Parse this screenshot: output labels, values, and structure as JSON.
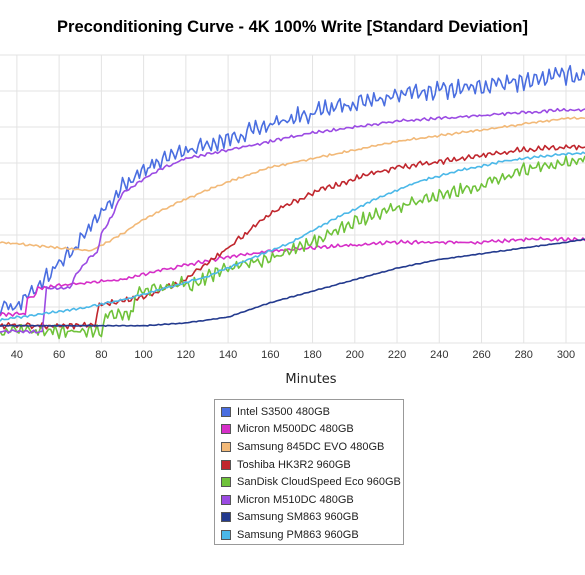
{
  "chart_data": {
    "type": "line",
    "title": "Preconditioning Curve - 4K 100% Write [Standard Deviation]",
    "xlabel": "Minutes",
    "ylabel": "",
    "x_tick_labels": [
      "40",
      "60",
      "80",
      "100",
      "120",
      "140",
      "160",
      "180",
      "200",
      "220",
      "240",
      "260",
      "280",
      "300"
    ],
    "xlim": [
      32,
      309
    ],
    "ylim": [
      0,
      1
    ],
    "y_tick_labels_visible": false,
    "grid": true,
    "legend_position": "bottom-center",
    "series": [
      {
        "name": "Intel S3500 480GB",
        "color": "#4a6ee0",
        "noise": 0.03,
        "points": [
          [
            32,
            0.13
          ],
          [
            40,
            0.13
          ],
          [
            45,
            0.16
          ],
          [
            50,
            0.2
          ],
          [
            55,
            0.24
          ],
          [
            60,
            0.28
          ],
          [
            65,
            0.31
          ],
          [
            70,
            0.35
          ],
          [
            75,
            0.4
          ],
          [
            80,
            0.45
          ],
          [
            90,
            0.54
          ],
          [
            100,
            0.6
          ],
          [
            110,
            0.64
          ],
          [
            120,
            0.67
          ],
          [
            130,
            0.69
          ],
          [
            140,
            0.71
          ],
          [
            160,
            0.76
          ],
          [
            180,
            0.8
          ],
          [
            200,
            0.83
          ],
          [
            220,
            0.86
          ],
          [
            240,
            0.88
          ],
          [
            260,
            0.89
          ],
          [
            280,
            0.91
          ],
          [
            300,
            0.93
          ],
          [
            309,
            0.93
          ]
        ]
      },
      {
        "name": "Micron M500DC 480GB",
        "color": "#d62fc8",
        "noise": 0.006,
        "points": [
          [
            32,
            0.1
          ],
          [
            44,
            0.1
          ],
          [
            45,
            0.16
          ],
          [
            48,
            0.16
          ],
          [
            50,
            0.19
          ],
          [
            60,
            0.2
          ],
          [
            75,
            0.21
          ],
          [
            90,
            0.22
          ],
          [
            100,
            0.24
          ],
          [
            120,
            0.27
          ],
          [
            140,
            0.3
          ],
          [
            160,
            0.32
          ],
          [
            180,
            0.33
          ],
          [
            200,
            0.34
          ],
          [
            220,
            0.35
          ],
          [
            240,
            0.35
          ],
          [
            260,
            0.35
          ],
          [
            280,
            0.36
          ],
          [
            300,
            0.36
          ],
          [
            309,
            0.36
          ]
        ]
      },
      {
        "name": "Samsung 845DC EVO 480GB",
        "color": "#f2b978",
        "noise": 0.004,
        "points": [
          [
            32,
            0.35
          ],
          [
            75,
            0.32
          ],
          [
            90,
            0.38
          ],
          [
            100,
            0.43
          ],
          [
            120,
            0.5
          ],
          [
            140,
            0.56
          ],
          [
            160,
            0.61
          ],
          [
            180,
            0.64
          ],
          [
            200,
            0.67
          ],
          [
            220,
            0.7
          ],
          [
            240,
            0.72
          ],
          [
            260,
            0.74
          ],
          [
            280,
            0.76
          ],
          [
            300,
            0.78
          ],
          [
            309,
            0.78
          ]
        ]
      },
      {
        "name": "Toshiba HK3R2 960GB",
        "color": "#c0262d",
        "noise": 0.01,
        "points": [
          [
            32,
            0.06
          ],
          [
            77,
            0.06
          ],
          [
            79,
            0.13
          ],
          [
            100,
            0.16
          ],
          [
            120,
            0.22
          ],
          [
            140,
            0.33
          ],
          [
            160,
            0.45
          ],
          [
            180,
            0.52
          ],
          [
            200,
            0.57
          ],
          [
            220,
            0.61
          ],
          [
            240,
            0.63
          ],
          [
            260,
            0.65
          ],
          [
            280,
            0.67
          ],
          [
            300,
            0.68
          ],
          [
            309,
            0.68
          ]
        ]
      },
      {
        "name": "SanDisk CloudSpeed Eco 960GB",
        "color": "#6fc23a",
        "noise": 0.022,
        "points": [
          [
            32,
            0.04
          ],
          [
            80,
            0.04
          ],
          [
            82,
            0.1
          ],
          [
            95,
            0.1
          ],
          [
            96,
            0.18
          ],
          [
            110,
            0.19
          ],
          [
            120,
            0.22
          ],
          [
            122,
            0.2
          ],
          [
            140,
            0.26
          ],
          [
            160,
            0.29
          ],
          [
            180,
            0.35
          ],
          [
            200,
            0.42
          ],
          [
            220,
            0.47
          ],
          [
            240,
            0.51
          ],
          [
            260,
            0.55
          ],
          [
            280,
            0.6
          ],
          [
            300,
            0.63
          ],
          [
            309,
            0.64
          ]
        ]
      },
      {
        "name": "Micron M510DC 480GB",
        "color": "#9b4be3",
        "noise": 0.005,
        "points": [
          [
            32,
            0.04
          ],
          [
            52,
            0.04
          ],
          [
            54,
            0.19
          ],
          [
            65,
            0.19
          ],
          [
            68,
            0.24
          ],
          [
            75,
            0.3
          ],
          [
            78,
            0.31
          ],
          [
            80,
            0.38
          ],
          [
            85,
            0.44
          ],
          [
            90,
            0.52
          ],
          [
            100,
            0.57
          ],
          [
            110,
            0.61
          ],
          [
            120,
            0.64
          ],
          [
            140,
            0.67
          ],
          [
            160,
            0.7
          ],
          [
            180,
            0.73
          ],
          [
            200,
            0.75
          ],
          [
            220,
            0.77
          ],
          [
            240,
            0.78
          ],
          [
            260,
            0.79
          ],
          [
            280,
            0.8
          ],
          [
            300,
            0.81
          ],
          [
            309,
            0.81
          ]
        ]
      },
      {
        "name": "Samsung SM863 960GB",
        "color": "#233a8e",
        "noise": 0.0015,
        "points": [
          [
            32,
            0.06
          ],
          [
            100,
            0.06
          ],
          [
            120,
            0.07
          ],
          [
            140,
            0.09
          ],
          [
            160,
            0.14
          ],
          [
            180,
            0.18
          ],
          [
            200,
            0.22
          ],
          [
            220,
            0.26
          ],
          [
            240,
            0.29
          ],
          [
            260,
            0.31
          ],
          [
            280,
            0.33
          ],
          [
            300,
            0.35
          ],
          [
            309,
            0.36
          ]
        ]
      },
      {
        "name": "Samsung PM863 960GB",
        "color": "#4bb8e8",
        "noise": 0.004,
        "points": [
          [
            32,
            0.08
          ],
          [
            50,
            0.1
          ],
          [
            70,
            0.12
          ],
          [
            90,
            0.15
          ],
          [
            110,
            0.19
          ],
          [
            130,
            0.23
          ],
          [
            150,
            0.29
          ],
          [
            170,
            0.35
          ],
          [
            190,
            0.43
          ],
          [
            210,
            0.5
          ],
          [
            230,
            0.56
          ],
          [
            250,
            0.6
          ],
          [
            270,
            0.63
          ],
          [
            290,
            0.65
          ],
          [
            309,
            0.66
          ]
        ]
      }
    ]
  }
}
